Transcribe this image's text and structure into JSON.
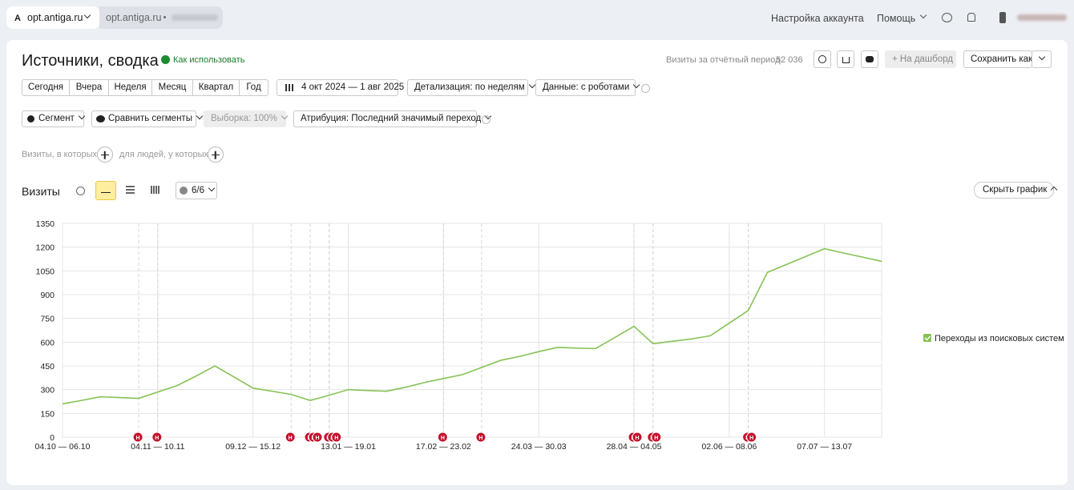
{
  "header": {
    "tab_icon": "A",
    "tab_active": "opt.antiga.ru",
    "tab_second": "opt.antiga.ru",
    "account_settings": "Настройка аккаунта",
    "help": "Помощь"
  },
  "report": {
    "title": "Источники, сводка",
    "how_to_use": "Как использовать",
    "visits_label": "Визиты за отчётный период:",
    "visits_total": "52 036",
    "to_dashboard": "На дашборд",
    "save_as": "Сохранить как"
  },
  "period": {
    "presets": [
      "Сегодня",
      "Вчера",
      "Неделя",
      "Месяц",
      "Квартал",
      "Год"
    ],
    "date_range": "4 окт 2024 — 1 авг 2025",
    "detail": "Детализация: по неделям",
    "data": "Данные: с роботами"
  },
  "filters": {
    "segment": "Сегмент",
    "compare": "Сравнить сегменты",
    "sample": "Выборка: 100%",
    "attribution": "Атрибуция: Последний значимый переход",
    "visits_where": "Визиты, в которых",
    "people_where": "для людей, у которых"
  },
  "chart_controls": {
    "series_count": "6/6",
    "hide_chart": "Скрыть график"
  },
  "chart_data": {
    "type": "line",
    "title": "Визиты",
    "categories": [
      "04.10 — 06.10",
      null,
      null,
      null,
      null,
      "04.11 — 10.11",
      null,
      null,
      null,
      null,
      "09.12 — 15.12",
      null,
      null,
      null,
      null,
      "13.01 — 19.01",
      null,
      null,
      null,
      null,
      "17.02 — 23.02",
      null,
      null,
      null,
      null,
      "24.03 — 30.03",
      null,
      null,
      null,
      null,
      "28.04 — 04.05",
      null,
      null,
      null,
      null,
      "02.06 — 08.06",
      null,
      null,
      null,
      null,
      "07.07 — 13.07",
      null,
      null,
      null
    ],
    "series": [
      {
        "name": "Переходы из поисковых систем",
        "color": "#86c254",
        "values": [
          210,
          232,
          255,
          250,
          245,
          285,
          325,
          385,
          450,
          380,
          310,
          290,
          270,
          232,
          265,
          300,
          295,
          290,
          315,
          345,
          370,
          395,
          440,
          485,
          510,
          540,
          567,
          562,
          560,
          630,
          700,
          590,
          605,
          620,
          640,
          720,
          800,
          1040,
          1090,
          1140,
          1190,
          1163,
          1137,
          1110
        ]
      }
    ],
    "ylim": [
      0,
      1350
    ],
    "yticks": [
      0,
      150,
      300,
      450,
      600,
      750,
      900,
      1050,
      1200,
      1350
    ],
    "grid": true,
    "legend": "right",
    "annotations": [
      {
        "x": 4,
        "label": "Н"
      },
      {
        "x": 5,
        "label": "Н"
      },
      {
        "x": 12,
        "label": "Н"
      },
      {
        "x": 13,
        "label": "Н"
      },
      {
        "x": 13,
        "label": "Н"
      },
      {
        "x": 13,
        "label": "Н"
      },
      {
        "x": 14,
        "label": "Н"
      },
      {
        "x": 14,
        "label": "Н"
      },
      {
        "x": 14,
        "label": "Н"
      },
      {
        "x": 20,
        "label": "Н"
      },
      {
        "x": 22,
        "label": "Н"
      },
      {
        "x": 30,
        "label": "Н"
      },
      {
        "x": 30,
        "label": "Н"
      },
      {
        "x": 31,
        "label": "Н"
      },
      {
        "x": 31,
        "label": "Н"
      },
      {
        "x": 36,
        "label": "Н"
      },
      {
        "x": 36,
        "label": "Н"
      }
    ]
  }
}
